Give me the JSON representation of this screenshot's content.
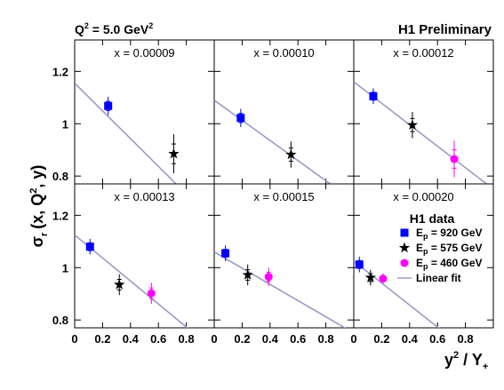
{
  "header": {
    "q2_main": "Q",
    "q2_sup": "2",
    "q2_rest": " = 5.0 GeV",
    "q2_unit_sup": "2",
    "preliminary": "H1 Preliminary"
  },
  "axes": {
    "ylabel_sigma": "σ",
    "ylabel_sub": "r",
    "ylabel_open": "(x, Q",
    "ylabel_sup": "2",
    "ylabel_close": ", y)",
    "xlabel_y": "y",
    "xlabel_sup": "2",
    "xlabel_mid": " / Y",
    "xlabel_sub": "+"
  },
  "legend": {
    "title": "H1 data",
    "entries": [
      {
        "prefix": "E",
        "sub": "p",
        "text": " = 920 GeV",
        "color": "#0000ff",
        "marker": "square"
      },
      {
        "prefix": "E",
        "sub": "p",
        "text": " = 575 GeV",
        "color": "#000000",
        "marker": "star"
      },
      {
        "prefix": "E",
        "sub": "p",
        "text": " = 460 GeV",
        "color": "#ff00ff",
        "marker": "circle"
      },
      {
        "prefix": "",
        "sub": "",
        "text": "Linear fit",
        "color": "#9a9ac8",
        "marker": "line"
      }
    ]
  },
  "chart_data": {
    "type": "scatter",
    "xlim": [
      0,
      1.0
    ],
    "ylim": [
      0.77,
      1.32
    ],
    "x_ticks": [
      0,
      0.2,
      0.4,
      0.6,
      0.8
    ],
    "x_tick_labels": [
      "0",
      "0.2",
      "0.4",
      "0.6",
      "0.8"
    ],
    "y_ticks": [
      0.8,
      1.0,
      1.2
    ],
    "y_tick_labels": [
      "0.8",
      "1",
      "1.2"
    ],
    "fit_color": "#9a9ac8",
    "panels": [
      {
        "label": "x =  0.00009",
        "fit": {
          "intercept": 1.155,
          "slope": -0.53
        },
        "points": [
          {
            "series": "920",
            "x": 0.24,
            "y": 1.068,
            "err": 0.035,
            "xerr": 0.01
          },
          {
            "series": "575",
            "x": 0.71,
            "y": 0.885,
            "err": 0.075
          }
        ]
      },
      {
        "label": "x =  0.00010",
        "fit": {
          "intercept": 1.09,
          "slope": -0.385
        },
        "points": [
          {
            "series": "920",
            "x": 0.19,
            "y": 1.022,
            "err": 0.035,
            "xerr": 0.01
          },
          {
            "series": "575",
            "x": 0.55,
            "y": 0.882,
            "err": 0.05
          }
        ]
      },
      {
        "label": "x =  0.00012",
        "fit": {
          "intercept": 1.16,
          "slope": -0.41
        },
        "points": [
          {
            "series": "920",
            "x": 0.14,
            "y": 1.105,
            "err": 0.03,
            "xerr": 0.01
          },
          {
            "series": "575",
            "x": 0.42,
            "y": 0.995,
            "err": 0.05
          },
          {
            "series": "460",
            "x": 0.72,
            "y": 0.865,
            "err": 0.07
          }
        ]
      },
      {
        "label": "x =  0.00013",
        "fit": {
          "intercept": 1.125,
          "slope": -0.44
        },
        "points": [
          {
            "series": "920",
            "x": 0.11,
            "y": 1.08,
            "err": 0.03,
            "xerr": 0.01
          },
          {
            "series": "575",
            "x": 0.32,
            "y": 0.935,
            "err": 0.04
          },
          {
            "series": "460",
            "x": 0.55,
            "y": 0.902,
            "err": 0.04
          }
        ]
      },
      {
        "label": "x =  0.00015",
        "fit": {
          "intercept": 1.06,
          "slope": -0.31
        },
        "points": [
          {
            "series": "920",
            "x": 0.08,
            "y": 1.055,
            "err": 0.03,
            "xerr": 0.01
          },
          {
            "series": "575",
            "x": 0.24,
            "y": 0.972,
            "err": 0.04
          },
          {
            "series": "460",
            "x": 0.39,
            "y": 0.965,
            "err": 0.035
          }
        ]
      },
      {
        "label": "x =  0.00020",
        "fit": {
          "intercept": 1.025,
          "slope": -0.42
        },
        "points": [
          {
            "series": "920",
            "x": 0.04,
            "y": 1.012,
            "err": 0.03,
            "xerr": 0.01
          },
          {
            "series": "575",
            "x": 0.12,
            "y": 0.962,
            "err": 0.03
          },
          {
            "series": "460",
            "x": 0.21,
            "y": 0.958,
            "err": 0.02
          }
        ]
      }
    ]
  }
}
